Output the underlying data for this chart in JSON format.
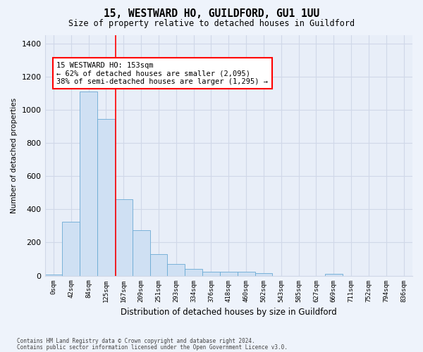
{
  "title": "15, WESTWARD HO, GUILDFORD, GU1 1UU",
  "subtitle": "Size of property relative to detached houses in Guildford",
  "xlabel": "Distribution of detached houses by size in Guildford",
  "ylabel": "Number of detached properties",
  "footnote1": "Contains HM Land Registry data © Crown copyright and database right 2024.",
  "footnote2": "Contains public sector information licensed under the Open Government Licence v3.0.",
  "bar_labels": [
    "0sqm",
    "42sqm",
    "84sqm",
    "125sqm",
    "167sqm",
    "209sqm",
    "251sqm",
    "293sqm",
    "334sqm",
    "376sqm",
    "418sqm",
    "460sqm",
    "502sqm",
    "543sqm",
    "585sqm",
    "627sqm",
    "669sqm",
    "711sqm",
    "752sqm",
    "794sqm",
    "836sqm"
  ],
  "bar_values": [
    8,
    325,
    1110,
    945,
    460,
    275,
    130,
    70,
    40,
    22,
    22,
    22,
    14,
    0,
    0,
    0,
    10,
    0,
    0,
    0,
    0
  ],
  "bar_color": "#cfe0f3",
  "bar_edge_color": "#6aaad4",
  "ylim": [
    0,
    1450
  ],
  "yticks": [
    0,
    200,
    400,
    600,
    800,
    1000,
    1200,
    1400
  ],
  "property_label": "15 WESTWARD HO: 153sqm",
  "property_line_x": 3.55,
  "annotation_line1": "← 62% of detached houses are smaller (2,095)",
  "annotation_line2": "38% of semi-detached houses are larger (1,295) →",
  "background_color": "#eef3fb",
  "plot_bg_color": "#e8eef8",
  "grid_color": "#d0d8e8"
}
